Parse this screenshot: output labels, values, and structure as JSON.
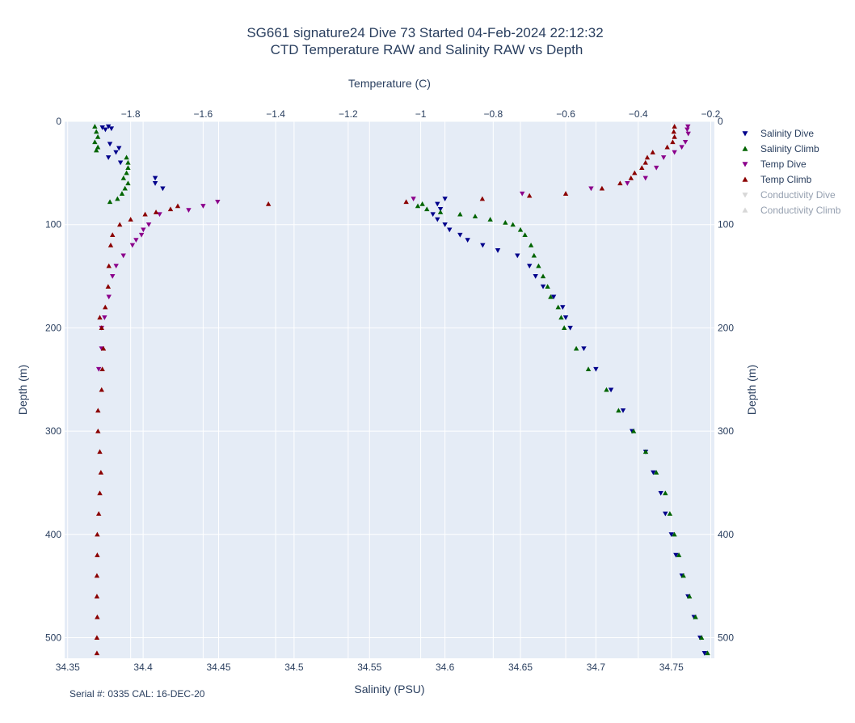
{
  "title_line1": "SG661 signature24 Dive 73 Started 04-Feb-2024 22:12:32",
  "title_line2": "CTD Temperature RAW and Salinity RAW vs Depth",
  "footnote": "Serial #: 0335  CAL: 16-DEC-20",
  "chart_data": {
    "type": "scatter",
    "y_axis": {
      "label": "Depth (m)",
      "range": [
        520,
        0
      ],
      "reversed": true,
      "ticks": [
        0,
        100,
        200,
        300,
        400,
        500
      ]
    },
    "x_bottom": {
      "label": "Salinity (PSU)",
      "range": [
        34.348,
        34.7785
      ],
      "ticks": [
        34.35,
        34.4,
        34.45,
        34.5,
        34.55,
        34.6,
        34.65,
        34.7,
        34.75
      ],
      "tick_labels": [
        "34.35",
        "34.4",
        "34.45",
        "34.5",
        "34.55",
        "34.6",
        "34.65",
        "34.7",
        "34.75"
      ]
    },
    "x_top": {
      "label": "Temperature (C)",
      "range": [
        -1.982,
        -0.19
      ],
      "ticks": [
        -1.8,
        -1.6,
        -1.4,
        -1.2,
        -1.0,
        -0.8,
        -0.6,
        -0.4,
        -0.2
      ],
      "tick_labels": [
        "−1.8",
        "−1.6",
        "−1.4",
        "−1.2",
        "−1",
        "−0.8",
        "−0.6",
        "−0.4",
        "−0.2"
      ]
    },
    "grid": true,
    "legend_position": "right",
    "series": [
      {
        "name": "Salinity Dive",
        "axis": "salinity",
        "color": "#00008b",
        "marker": "triangle-down",
        "visible": true,
        "points": [
          [
            5,
            34.377
          ],
          [
            6,
            34.373
          ],
          [
            7,
            34.379
          ],
          [
            8,
            34.375
          ],
          [
            22,
            34.378
          ],
          [
            26,
            34.384
          ],
          [
            30,
            34.382
          ],
          [
            35,
            34.377
          ],
          [
            40,
            34.385
          ],
          [
            55,
            34.408
          ],
          [
            60,
            34.408
          ],
          [
            65,
            34.413
          ],
          [
            75,
            34.6
          ],
          [
            80,
            34.595
          ],
          [
            85,
            34.597
          ],
          [
            90,
            34.592
          ],
          [
            95,
            34.595
          ],
          [
            100,
            34.6
          ],
          [
            105,
            34.603
          ],
          [
            110,
            34.61
          ],
          [
            115,
            34.615
          ],
          [
            120,
            34.625
          ],
          [
            125,
            34.635
          ],
          [
            130,
            34.648
          ],
          [
            140,
            34.656
          ],
          [
            150,
            34.66
          ],
          [
            160,
            34.665
          ],
          [
            170,
            34.672
          ],
          [
            180,
            34.678
          ],
          [
            190,
            34.68
          ],
          [
            200,
            34.683
          ],
          [
            220,
            34.692
          ],
          [
            240,
            34.7
          ],
          [
            260,
            34.71
          ],
          [
            280,
            34.718
          ],
          [
            300,
            34.724
          ],
          [
            320,
            34.733
          ],
          [
            340,
            34.738
          ],
          [
            360,
            34.743
          ],
          [
            380,
            34.746
          ],
          [
            400,
            34.75
          ],
          [
            420,
            34.753
          ],
          [
            440,
            34.757
          ],
          [
            460,
            34.761
          ],
          [
            480,
            34.765
          ],
          [
            500,
            34.769
          ],
          [
            515,
            34.772
          ]
        ]
      },
      {
        "name": "Salinity Climb",
        "axis": "salinity",
        "color": "#006400",
        "marker": "triangle-up",
        "visible": true,
        "points": [
          [
            5,
            34.368
          ],
          [
            10,
            34.369
          ],
          [
            15,
            34.37
          ],
          [
            20,
            34.368
          ],
          [
            25,
            34.37
          ],
          [
            28,
            34.369
          ],
          [
            35,
            34.389
          ],
          [
            40,
            34.39
          ],
          [
            45,
            34.39
          ],
          [
            50,
            34.389
          ],
          [
            55,
            34.387
          ],
          [
            60,
            34.39
          ],
          [
            65,
            34.388
          ],
          [
            70,
            34.386
          ],
          [
            75,
            34.383
          ],
          [
            78,
            34.378
          ],
          [
            80,
            34.585
          ],
          [
            82,
            34.582
          ],
          [
            85,
            34.588
          ],
          [
            88,
            34.597
          ],
          [
            90,
            34.61
          ],
          [
            92,
            34.62
          ],
          [
            95,
            34.63
          ],
          [
            98,
            34.64
          ],
          [
            100,
            34.645
          ],
          [
            105,
            34.65
          ],
          [
            110,
            34.653
          ],
          [
            120,
            34.657
          ],
          [
            130,
            34.659
          ],
          [
            140,
            34.662
          ],
          [
            150,
            34.665
          ],
          [
            160,
            34.668
          ],
          [
            170,
            34.67
          ],
          [
            180,
            34.675
          ],
          [
            190,
            34.677
          ],
          [
            200,
            34.679
          ],
          [
            220,
            34.687
          ],
          [
            240,
            34.695
          ],
          [
            260,
            34.707
          ],
          [
            280,
            34.715
          ],
          [
            300,
            34.725
          ],
          [
            320,
            34.733
          ],
          [
            340,
            34.74
          ],
          [
            360,
            34.746
          ],
          [
            380,
            34.749
          ],
          [
            400,
            34.752
          ],
          [
            420,
            34.755
          ],
          [
            440,
            34.758
          ],
          [
            460,
            34.762
          ],
          [
            480,
            34.766
          ],
          [
            500,
            34.77
          ],
          [
            515,
            34.774
          ]
        ]
      },
      {
        "name": "Temp Dive",
        "axis": "temperature",
        "color": "#8b008b",
        "marker": "triangle-down",
        "visible": true,
        "points": [
          [
            5,
            -0.263
          ],
          [
            8,
            -0.265
          ],
          [
            12,
            -0.262
          ],
          [
            20,
            -0.27
          ],
          [
            25,
            -0.28
          ],
          [
            30,
            -0.3
          ],
          [
            35,
            -0.33
          ],
          [
            45,
            -0.35
          ],
          [
            55,
            -0.38
          ],
          [
            60,
            -0.43
          ],
          [
            65,
            -0.53
          ],
          [
            70,
            -0.72
          ],
          [
            75,
            -1.02
          ],
          [
            78,
            -1.56
          ],
          [
            82,
            -1.6
          ],
          [
            86,
            -1.64
          ],
          [
            90,
            -1.72
          ],
          [
            100,
            -1.75
          ],
          [
            105,
            -1.765
          ],
          [
            110,
            -1.77
          ],
          [
            115,
            -1.785
          ],
          [
            120,
            -1.795
          ],
          [
            130,
            -1.82
          ],
          [
            140,
            -1.84
          ],
          [
            150,
            -1.85
          ],
          [
            170,
            -1.86
          ],
          [
            190,
            -1.872
          ],
          [
            200,
            -1.88
          ],
          [
            220,
            -1.88
          ],
          [
            240,
            -1.888
          ]
        ]
      },
      {
        "name": "Temp Climb",
        "axis": "temperature",
        "color": "#8b0000",
        "marker": "triangle-up",
        "visible": true,
        "points": [
          [
            5,
            -0.3
          ],
          [
            10,
            -0.302
          ],
          [
            15,
            -0.3
          ],
          [
            20,
            -0.305
          ],
          [
            25,
            -0.32
          ],
          [
            30,
            -0.36
          ],
          [
            35,
            -0.375
          ],
          [
            40,
            -0.38
          ],
          [
            45,
            -0.39
          ],
          [
            50,
            -0.41
          ],
          [
            55,
            -0.42
          ],
          [
            60,
            -0.45
          ],
          [
            65,
            -0.5
          ],
          [
            70,
            -0.6
          ],
          [
            72,
            -0.7
          ],
          [
            75,
            -0.83
          ],
          [
            78,
            -1.04
          ],
          [
            80,
            -1.42
          ],
          [
            82,
            -1.67
          ],
          [
            85,
            -1.69
          ],
          [
            88,
            -1.73
          ],
          [
            90,
            -1.76
          ],
          [
            95,
            -1.8
          ],
          [
            100,
            -1.83
          ],
          [
            110,
            -1.85
          ],
          [
            120,
            -1.855
          ],
          [
            140,
            -1.86
          ],
          [
            160,
            -1.862
          ],
          [
            180,
            -1.87
          ],
          [
            190,
            -1.885
          ],
          [
            200,
            -1.88
          ],
          [
            220,
            -1.875
          ],
          [
            240,
            -1.878
          ],
          [
            260,
            -1.88
          ],
          [
            280,
            -1.89
          ],
          [
            300,
            -1.89
          ],
          [
            320,
            -1.885
          ],
          [
            340,
            -1.882
          ],
          [
            360,
            -1.885
          ],
          [
            380,
            -1.888
          ],
          [
            400,
            -1.892
          ],
          [
            420,
            -1.892
          ],
          [
            440,
            -1.893
          ],
          [
            460,
            -1.893
          ],
          [
            480,
            -1.892
          ],
          [
            500,
            -1.893
          ],
          [
            515,
            -1.893
          ]
        ]
      },
      {
        "name": "Conductivity Dive",
        "axis": "salinity",
        "color": "#b0b0b0",
        "marker": "triangle-down",
        "visible": false,
        "points": []
      },
      {
        "name": "Conductivity Climb",
        "axis": "salinity",
        "color": "#b0b0b0",
        "marker": "triangle-up",
        "visible": false,
        "points": []
      }
    ]
  }
}
